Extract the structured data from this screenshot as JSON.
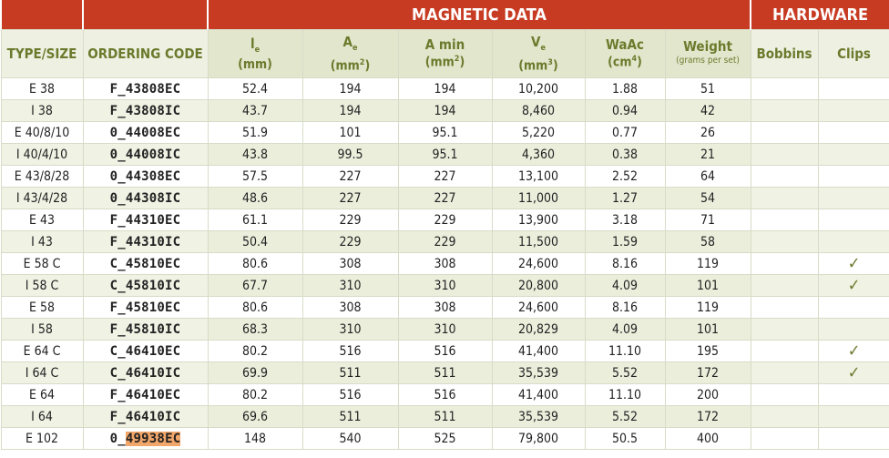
{
  "band": {
    "magnetic": "MAGNETIC DATA",
    "hardware": "HARDWARE"
  },
  "headers": {
    "type_size": "TYPE/SIZE",
    "ordering_code": "ORDERING CODE",
    "le_main": "l",
    "le_sub": "e",
    "le_unit": "(mm)",
    "ae_main": "A",
    "ae_sub": "e",
    "ae_unit_pre": "(mm",
    "ae_unit_sup": "2",
    "ae_unit_post": ")",
    "amin_main": "A min",
    "amin_unit_pre": "(mm",
    "amin_unit_sup": "2",
    "amin_unit_post": ")",
    "ve_main": "V",
    "ve_sub": "e",
    "ve_unit_pre": "(mm",
    "ve_unit_sup": "3",
    "ve_unit_post": ")",
    "waac_main": "WaAc",
    "waac_unit_pre": "(cm",
    "waac_unit_sup": "4",
    "waac_unit_post": ")",
    "weight_main": "Weight",
    "weight_unit": "(grams per set)",
    "bobbins": "Bobbins",
    "clips": "Clips"
  },
  "check_symbol": "✓",
  "rows": [
    {
      "type": "E 38",
      "code": "F_43808EC",
      "le": "52.4",
      "ae": "194",
      "amin": "194",
      "ve": "10,200",
      "waac": "1.88",
      "weight": "51",
      "clip": ""
    },
    {
      "type": "I 38",
      "code": "F_43808IC",
      "le": "43.7",
      "ae": "194",
      "amin": "194",
      "ve": "8,460",
      "waac": "0.94",
      "weight": "42",
      "clip": ""
    },
    {
      "type": "E 40/8/10",
      "code": "0_44008EC",
      "le": "51.9",
      "ae": "101",
      "amin": "95.1",
      "ve": "5,220",
      "waac": "0.77",
      "weight": "26",
      "clip": ""
    },
    {
      "type": "I 40/4/10",
      "code": "0_44008IC",
      "le": "43.8",
      "ae": "99.5",
      "amin": "95.1",
      "ve": "4,360",
      "waac": "0.38",
      "weight": "21",
      "clip": ""
    },
    {
      "type": "E 43/8/28",
      "code": "0_44308EC",
      "le": "57.5",
      "ae": "227",
      "amin": "227",
      "ve": "13,100",
      "waac": "2.52",
      "weight": "64",
      "clip": ""
    },
    {
      "type": "I 43/4/28",
      "code": "0_44308IC",
      "le": "48.6",
      "ae": "227",
      "amin": "227",
      "ve": "11,000",
      "waac": "1.27",
      "weight": "54",
      "clip": ""
    },
    {
      "type": "E 43",
      "code": "F_44310EC",
      "le": "61.1",
      "ae": "229",
      "amin": "229",
      "ve": "13,900",
      "waac": "3.18",
      "weight": "71",
      "clip": ""
    },
    {
      "type": "I 43",
      "code": "F_44310IC",
      "le": "50.4",
      "ae": "229",
      "amin": "229",
      "ve": "11,500",
      "waac": "1.59",
      "weight": "58",
      "clip": ""
    },
    {
      "type": "E 58 C",
      "code": "C_45810EC",
      "le": "80.6",
      "ae": "308",
      "amin": "308",
      "ve": "24,600",
      "waac": "8.16",
      "weight": "119",
      "clip": "✓"
    },
    {
      "type": "I 58 C",
      "code": "C_45810IC",
      "le": "67.7",
      "ae": "310",
      "amin": "310",
      "ve": "20,800",
      "waac": "4.09",
      "weight": "101",
      "clip": "✓"
    },
    {
      "type": "E 58",
      "code": "F_45810EC",
      "le": "80.6",
      "ae": "308",
      "amin": "308",
      "ve": "24,600",
      "waac": "8.16",
      "weight": "119",
      "clip": ""
    },
    {
      "type": "I 58",
      "code": "F_45810IC",
      "le": "68.3",
      "ae": "310",
      "amin": "310",
      "ve": "20,829",
      "waac": "4.09",
      "weight": "101",
      "clip": ""
    },
    {
      "type": "E 64 C",
      "code": "C_46410EC",
      "le": "80.2",
      "ae": "516",
      "amin": "516",
      "ve": "41,400",
      "waac": "11.10",
      "weight": "195",
      "clip": "✓"
    },
    {
      "type": "I 64 C",
      "code": "C_46410IC",
      "le": "69.9",
      "ae": "511",
      "amin": "511",
      "ve": "35,539",
      "waac": "5.52",
      "weight": "172",
      "clip": "✓"
    },
    {
      "type": "E 64",
      "code": "F_46410EC",
      "le": "80.2",
      "ae": "516",
      "amin": "516",
      "ve": "41,400",
      "waac": "11.10",
      "weight": "200",
      "clip": ""
    },
    {
      "type": "I 64",
      "code": "F_46410IC",
      "le": "69.6",
      "ae": "511",
      "amin": "511",
      "ve": "35,539",
      "waac": "5.52",
      "weight": "172",
      "clip": ""
    },
    {
      "type": "E 102",
      "code_pre": "0_",
      "code_hl": "49938EC",
      "le": "148",
      "ae": "540",
      "amin": "525",
      "ve": "79,800",
      "waac": "50.5",
      "weight": "400",
      "clip": ""
    }
  ]
}
